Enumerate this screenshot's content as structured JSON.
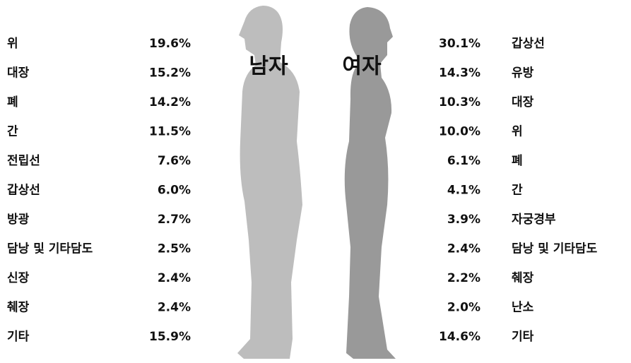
{
  "men": {
    "title": "남자",
    "rows": [
      [
        "위",
        "19.6%"
      ],
      [
        "대장",
        "15.2%"
      ],
      [
        "폐",
        "14.2%"
      ],
      [
        "간",
        "11.5%"
      ],
      [
        "전립선",
        "7.6%"
      ],
      [
        "갑상선",
        "6.0%"
      ],
      [
        "방광",
        "2.7%"
      ],
      [
        "담낭 및 기타담도",
        "2.5%"
      ],
      [
        "신장",
        "2.4%"
      ],
      [
        "췌장",
        "2.4%"
      ],
      [
        "기타",
        "15.9%"
      ]
    ]
  },
  "women": {
    "title": "여자",
    "rows": [
      [
        "갑상선",
        "30.1%"
      ],
      [
        "유방",
        "14.3%"
      ],
      [
        "대장",
        "10.3%"
      ],
      [
        "위",
        "10.0%"
      ],
      [
        "폐",
        "6.1%"
      ],
      [
        "간",
        "4.1%"
      ],
      [
        "자궁경부",
        "3.9%"
      ],
      [
        "담낭 및 기타담도",
        "2.4%"
      ],
      [
        "췌장",
        "2.2%"
      ],
      [
        "난소",
        "2.0%"
      ],
      [
        "기타",
        "14.6%"
      ]
    ]
  }
}
